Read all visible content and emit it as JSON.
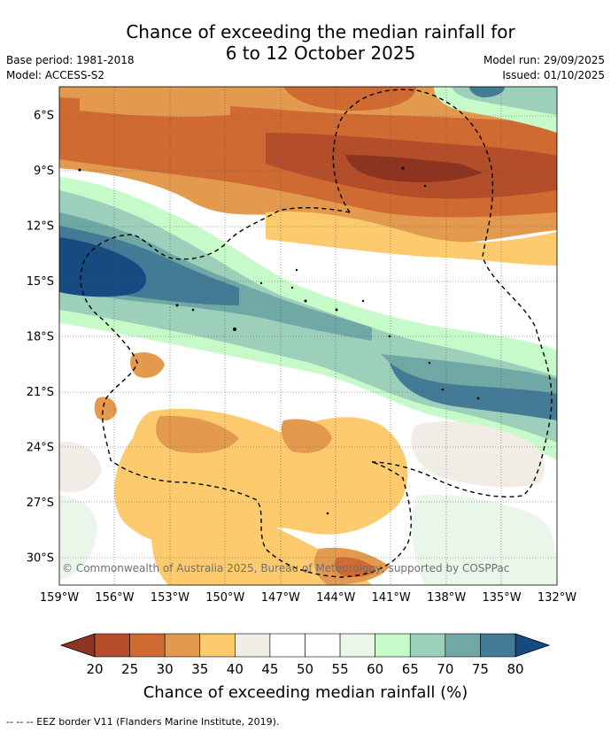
{
  "title": {
    "line1": "Chance of exceeding the median rainfall for",
    "line2": "6 to 12 October 2025"
  },
  "meta": {
    "base_period": "Base period: 1981-2018",
    "model": "Model: ACCESS-S2",
    "model_run": "Model run: 29/09/2025",
    "issued": "Issued: 01/10/2025"
  },
  "map": {
    "lon_range": [
      -159,
      -132
    ],
    "lat_range": [
      -31.5,
      -4.5
    ],
    "lat_ticks": [
      {
        "value": -6,
        "label": "6°S"
      },
      {
        "value": -9,
        "label": "9°S"
      },
      {
        "value": -12,
        "label": "12°S"
      },
      {
        "value": -15,
        "label": "15°S"
      },
      {
        "value": -18,
        "label": "18°S"
      },
      {
        "value": -21,
        "label": "21°S"
      },
      {
        "value": -24,
        "label": "24°S"
      },
      {
        "value": -27,
        "label": "27°S"
      },
      {
        "value": -30,
        "label": "30°S"
      }
    ],
    "lon_ticks": [
      {
        "value": -159,
        "label": "159°W"
      },
      {
        "value": -156,
        "label": "156°W"
      },
      {
        "value": -153,
        "label": "153°W"
      },
      {
        "value": -150,
        "label": "150°W"
      },
      {
        "value": -147,
        "label": "147°W"
      },
      {
        "value": -144,
        "label": "144°W"
      },
      {
        "value": -141,
        "label": "141°W"
      },
      {
        "value": -138,
        "label": "138°W"
      },
      {
        "value": -135,
        "label": "135°W"
      },
      {
        "value": -132,
        "label": "132°W"
      }
    ],
    "copyright": "© Commonwealth of Australia 2025, Bureau of Meteorology, supported by COSPPac"
  },
  "colorbar": {
    "title": "Chance of exceeding median rainfall (%)",
    "labels": [
      "20",
      "25",
      "30",
      "35",
      "40",
      "45",
      "50",
      "55",
      "60",
      "65",
      "70",
      "75",
      "80"
    ],
    "colors": [
      "#8c3420",
      "#b34d2a",
      "#cf6a33",
      "#e39a4f",
      "#fdcb6e",
      "#f1ece5",
      "#ffffff",
      "#ffffff",
      "#eaf6ea",
      "#c6fbc9",
      "#9dd0bb",
      "#6fa8a4",
      "#437a96",
      "#164a80"
    ]
  },
  "footer": "--  --  -- EEZ border V11 (Flanders Marine Institute, 2019)."
}
